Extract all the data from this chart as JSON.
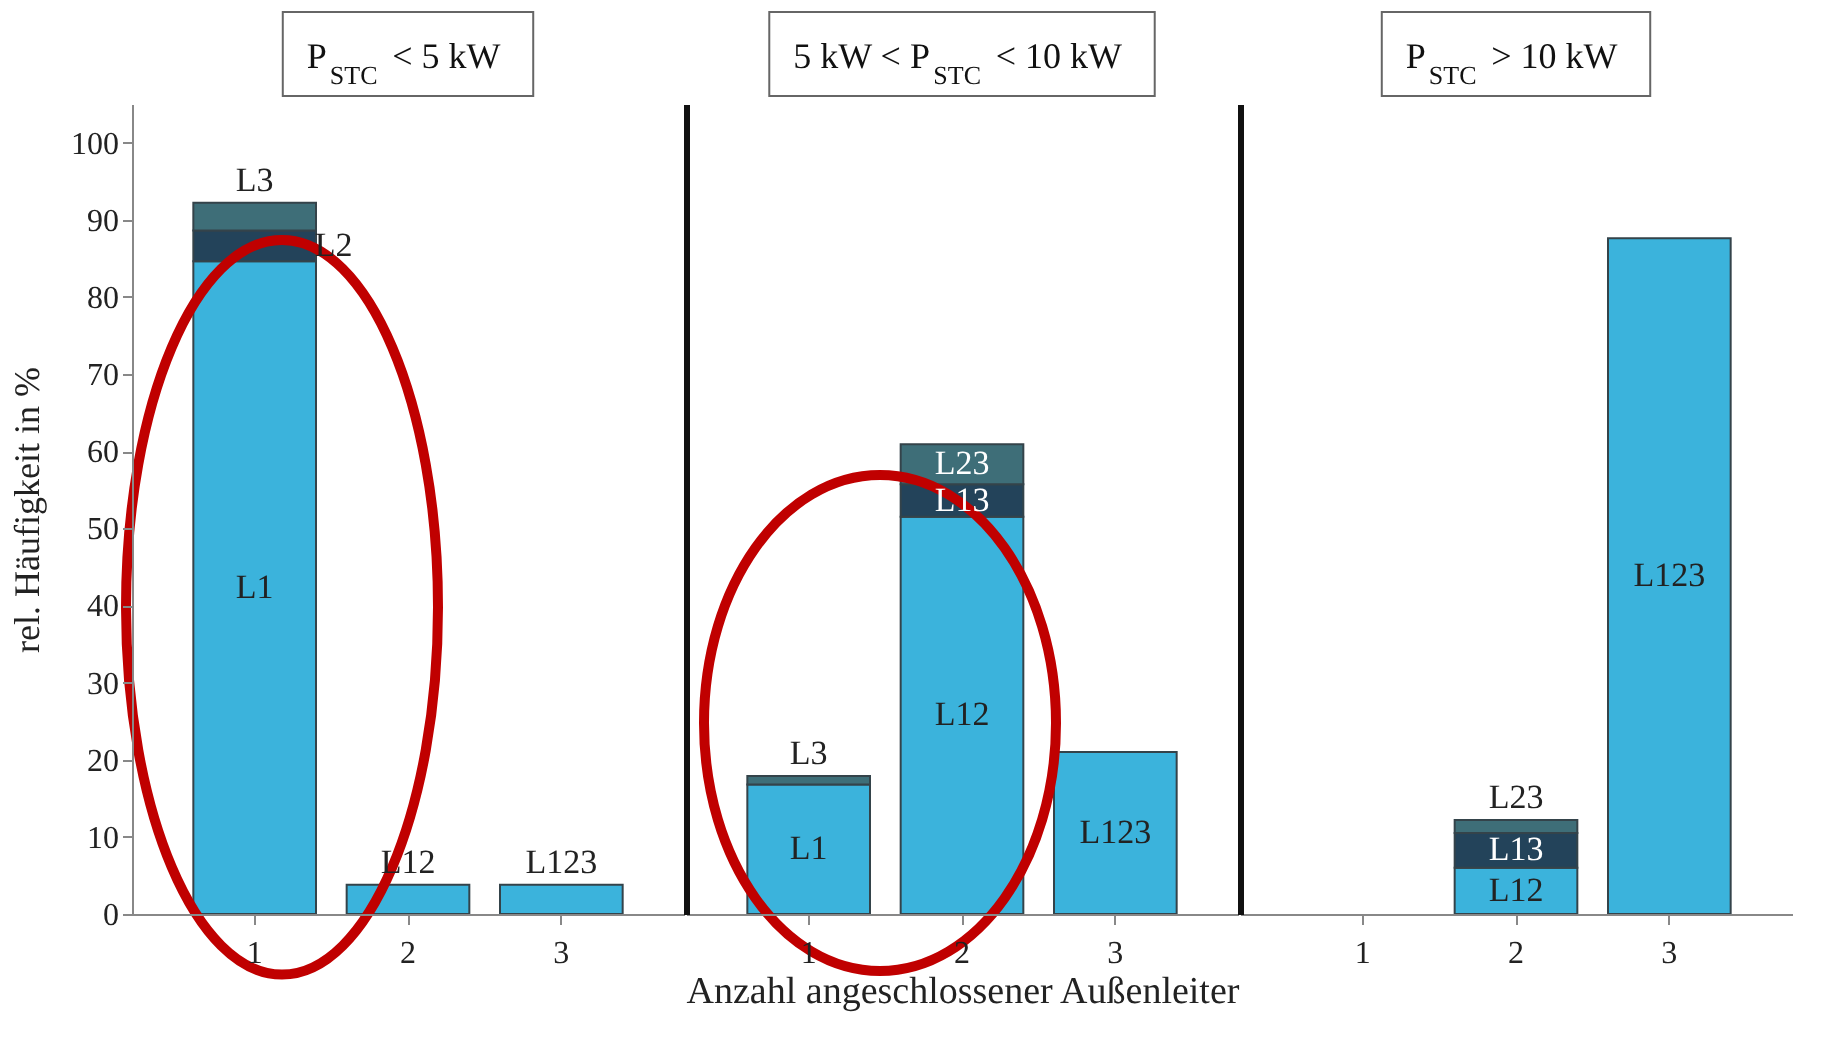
{
  "chart_data": [
    {
      "type": "bar",
      "stacked": true,
      "title": "P$_{STC}$ < 5 kW",
      "ylabel": "rel. Häufigkeit in %",
      "categories": [
        "1",
        "2",
        "3"
      ],
      "ylim": [
        0,
        105
      ],
      "yticks": [
        0,
        10,
        20,
        30,
        40,
        50,
        60,
        70,
        80,
        90,
        100
      ],
      "grid": false,
      "legend": false,
      "series": [
        {
          "name": "L1",
          "color": "#3bb3dc",
          "values": [
            84.6,
            null,
            null
          ]
        },
        {
          "name": "L12",
          "color": "#3bb3dc",
          "values": [
            null,
            3.8,
            null
          ]
        },
        {
          "name": "L123",
          "color": "#3bb3dc",
          "values": [
            null,
            null,
            3.8
          ]
        },
        {
          "name": "L2",
          "color": "#23435a",
          "values": [
            4.0,
            null,
            null
          ]
        },
        {
          "name": "L3",
          "color": "#3e6e78",
          "values": [
            3.6,
            null,
            null
          ]
        }
      ]
    },
    {
      "type": "bar",
      "stacked": true,
      "title": "5 kW < P$_{STC}$ < 10 kW",
      "xlabel": "Anzahl angeschlossener Außenleiter",
      "categories": [
        "1",
        "2",
        "3"
      ],
      "ylim": [
        0,
        105
      ],
      "yticks": [
        0,
        10,
        20,
        30,
        40,
        50,
        60,
        70,
        80,
        90,
        100
      ],
      "grid": false,
      "legend": false,
      "tick_labels": "x",
      "series": [
        {
          "name": "L1",
          "color": "#3bb3dc",
          "values": [
            16.8,
            null,
            null
          ]
        },
        {
          "name": "L12",
          "color": "#3bb3dc",
          "values": [
            null,
            51.5,
            null
          ]
        },
        {
          "name": "L123",
          "color": "#3bb3dc",
          "values": [
            null,
            null,
            21.0
          ]
        },
        {
          "name": "L13",
          "color": "#23435a",
          "values": [
            null,
            4.2,
            null
          ]
        },
        {
          "name": "L3",
          "color": "#3e6e78",
          "values": [
            1.1,
            null,
            null
          ]
        },
        {
          "name": "L23",
          "color": "#3e6e78",
          "values": [
            null,
            5.2,
            null
          ]
        }
      ]
    },
    {
      "type": "bar",
      "stacked": true,
      "title": "P$_{STC}$ > 10 kW",
      "categories": [
        "1",
        "2",
        "3"
      ],
      "ylim": [
        0,
        105
      ],
      "yticks": [
        0,
        10,
        20,
        30,
        40,
        50,
        60,
        70,
        80,
        90,
        100
      ],
      "grid": false,
      "legend": false,
      "tick_labels": "x",
      "series": [
        {
          "name": "L12",
          "color": "#3bb3dc",
          "values": [
            null,
            6.0,
            null
          ]
        },
        {
          "name": "L123",
          "color": "#3bb3dc",
          "values": [
            null,
            null,
            87.6
          ]
        },
        {
          "name": "L13",
          "color": "#23435a",
          "values": [
            null,
            4.5,
            null
          ]
        },
        {
          "name": "L23",
          "color": "#3e6e78",
          "values": [
            null,
            1.7,
            null
          ]
        }
      ]
    }
  ]
}
